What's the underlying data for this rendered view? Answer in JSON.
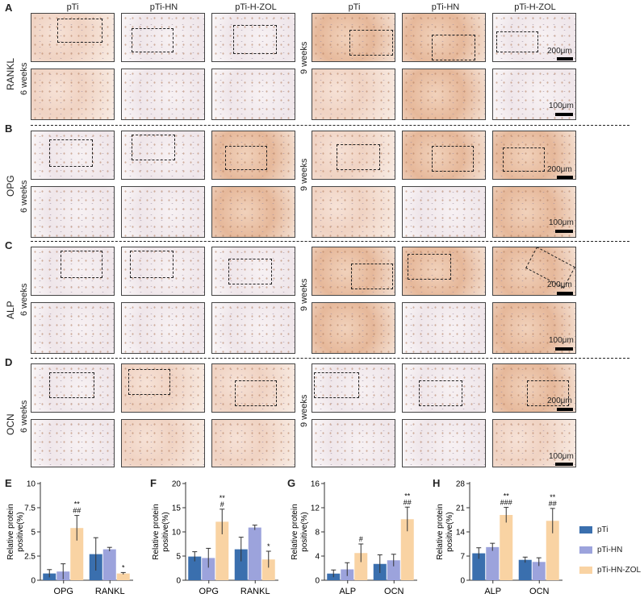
{
  "panels": {
    "A": "A",
    "B": "B",
    "C": "C",
    "D": "D",
    "E": "E",
    "F": "F",
    "G": "G",
    "H": "H"
  },
  "column_headers": [
    "pTi",
    "pTi-HN",
    "pTi-H-ZOL",
    "pTi",
    "pTi-HN",
    "pTi-H-ZOL"
  ],
  "stains": [
    "RANKL",
    "OPG",
    "ALP",
    "OCN"
  ],
  "weeks": {
    "six": "6 weeks",
    "nine": "9 weeks"
  },
  "scale_bars": {
    "low": "200μm",
    "high": "100μm"
  },
  "colors": {
    "pTi": "#3a6fae",
    "pTi-HN": "#9ca3dc",
    "pTi-HN-ZOL": "#f9d3a3",
    "error": "#333333"
  },
  "legend": [
    "pTi",
    "pTi-HN",
    "pTi-HN-ZOL"
  ],
  "chart_data": [
    {
      "type": "bar",
      "panel": "E",
      "ylabel": "Relative protein positive(%)",
      "ylim": [
        0,
        10
      ],
      "yticks": [
        "0",
        "2.5",
        "5",
        "7.5",
        "10"
      ],
      "categories": [
        "OPG",
        "RANKL"
      ],
      "series": [
        {
          "name": "pTi",
          "values": [
            0.7,
            2.7
          ],
          "err": [
            0.4,
            1.7
          ]
        },
        {
          "name": "pTi-HN",
          "values": [
            0.9,
            3.2
          ],
          "err": [
            0.8,
            0.2
          ]
        },
        {
          "name": "pTi-HN-ZOL",
          "values": [
            5.4,
            0.7
          ],
          "err": [
            1.3,
            0.1
          ]
        }
      ],
      "annotations": [
        [
          "",
          ""
        ],
        [
          "",
          ""
        ],
        [
          "**\n##",
          "*"
        ]
      ]
    },
    {
      "type": "bar",
      "panel": "F",
      "ylabel": "Relative protein positive(%)",
      "ylim": [
        0,
        20
      ],
      "yticks": [
        "0",
        "5",
        "10",
        "15",
        "20"
      ],
      "categories": [
        "OPG",
        "RANKL"
      ],
      "series": [
        {
          "name": "pTi",
          "values": [
            4.9,
            6.4
          ],
          "err": [
            1.0,
            2.5
          ]
        },
        {
          "name": "pTi-HN",
          "values": [
            4.6,
            10.9
          ],
          "err": [
            2.0,
            0.5
          ]
        },
        {
          "name": "pTi-HN-ZOL",
          "values": [
            12.1,
            4.3
          ],
          "err": [
            2.6,
            1.7
          ]
        }
      ],
      "annotations": [
        [
          "",
          ""
        ],
        [
          "",
          ""
        ],
        [
          "**\n#",
          "*"
        ]
      ]
    },
    {
      "type": "bar",
      "panel": "G",
      "ylabel": "Relative protein positive(%)",
      "ylim": [
        0,
        16
      ],
      "yticks": [
        "0",
        "4",
        "8",
        "12",
        "16"
      ],
      "categories": [
        "ALP",
        "OCN"
      ],
      "series": [
        {
          "name": "pTi",
          "values": [
            1.1,
            2.7
          ],
          "err": [
            0.6,
            1.5
          ]
        },
        {
          "name": "pTi-HN",
          "values": [
            1.8,
            3.3
          ],
          "err": [
            1.1,
            1.0
          ]
        },
        {
          "name": "pTi-HN-ZOL",
          "values": [
            4.5,
            10.1
          ],
          "err": [
            1.5,
            2.0
          ]
        }
      ],
      "annotations": [
        [
          "",
          ""
        ],
        [
          "",
          ""
        ],
        [
          "#",
          "**\n##"
        ]
      ]
    },
    {
      "type": "bar",
      "panel": "H",
      "ylabel": "Relative protein positive(%)",
      "ylim": [
        0,
        28
      ],
      "yticks": [
        "0",
        "7",
        "14",
        "21",
        "28"
      ],
      "categories": [
        "ALP",
        "OCN"
      ],
      "series": [
        {
          "name": "pTi",
          "values": [
            7.8,
            5.9
          ],
          "err": [
            1.6,
            0.8
          ]
        },
        {
          "name": "pTi-HN",
          "values": [
            9.6,
            5.3
          ],
          "err": [
            1.1,
            1.2
          ]
        },
        {
          "name": "pTi-HN-ZOL",
          "values": [
            18.9,
            17.2
          ],
          "err": [
            2.2,
            3.6
          ]
        }
      ],
      "annotations": [
        [
          "",
          ""
        ],
        [
          "",
          ""
        ],
        [
          "**\n###",
          "**\n##"
        ]
      ]
    }
  ]
}
